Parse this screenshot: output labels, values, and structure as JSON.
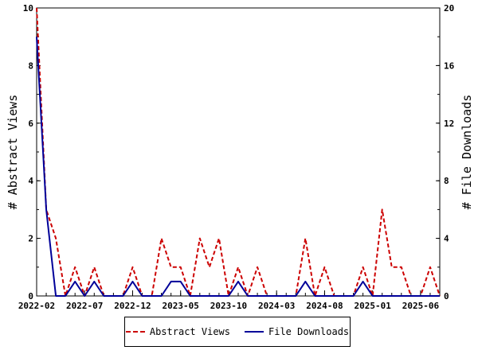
{
  "chart_data": {
    "type": "line",
    "title": "",
    "xlabel": "",
    "ylabel_left": "# Abstract Views",
    "ylabel_right": "# File Downloads",
    "ylim_left": [
      0,
      10
    ],
    "ylim_right": [
      0,
      20
    ],
    "yticks_left": [
      "0",
      "2",
      "4",
      "6",
      "8",
      "10"
    ],
    "yticks_right": [
      "0",
      "4",
      "8",
      "12",
      "16",
      "20"
    ],
    "xtick_labels": [
      "2022-02",
      "2022-07",
      "2022-12",
      "2023-05",
      "2023-10",
      "2024-03",
      "2024-08",
      "2025-01",
      "2025-06"
    ],
    "x_months": [
      "2022-02",
      "2022-03",
      "2022-04",
      "2022-05",
      "2022-06",
      "2022-07",
      "2022-08",
      "2022-09",
      "2022-10",
      "2022-11",
      "2022-12",
      "2023-01",
      "2023-02",
      "2023-03",
      "2023-04",
      "2023-05",
      "2023-06",
      "2023-07",
      "2023-08",
      "2023-09",
      "2023-10",
      "2023-11",
      "2023-12",
      "2024-01",
      "2024-02",
      "2024-03",
      "2024-04",
      "2024-05",
      "2024-06",
      "2024-07",
      "2024-08",
      "2024-09",
      "2024-10",
      "2024-11",
      "2024-12",
      "2025-01",
      "2025-02",
      "2025-03",
      "2025-04",
      "2025-05",
      "2025-06",
      "2025-07",
      "2025-08"
    ],
    "series": [
      {
        "name": "Abstract Views",
        "axis": "left",
        "color": "#cc0000",
        "style": "dashed",
        "values": [
          10,
          3,
          2,
          0,
          1,
          0,
          1,
          0,
          0,
          0,
          1,
          0,
          0,
          2,
          1,
          1,
          0,
          2,
          1,
          2,
          0,
          1,
          0,
          1,
          0,
          0,
          0,
          0,
          2,
          0,
          1,
          0,
          0,
          0,
          1,
          0,
          3,
          1,
          1,
          0,
          0,
          1,
          0
        ]
      },
      {
        "name": "File Downloads",
        "axis": "right",
        "color": "#000099",
        "style": "solid",
        "values": [
          18,
          6,
          0,
          0,
          1,
          0,
          1,
          0,
          0,
          0,
          1,
          0,
          0,
          0,
          1,
          1,
          0,
          0,
          0,
          0,
          0,
          1,
          0,
          0,
          0,
          0,
          0,
          0,
          1,
          0,
          0,
          0,
          0,
          0,
          1,
          0,
          0,
          0,
          0,
          0,
          0,
          0,
          0
        ]
      }
    ],
    "legend": "bottom"
  }
}
